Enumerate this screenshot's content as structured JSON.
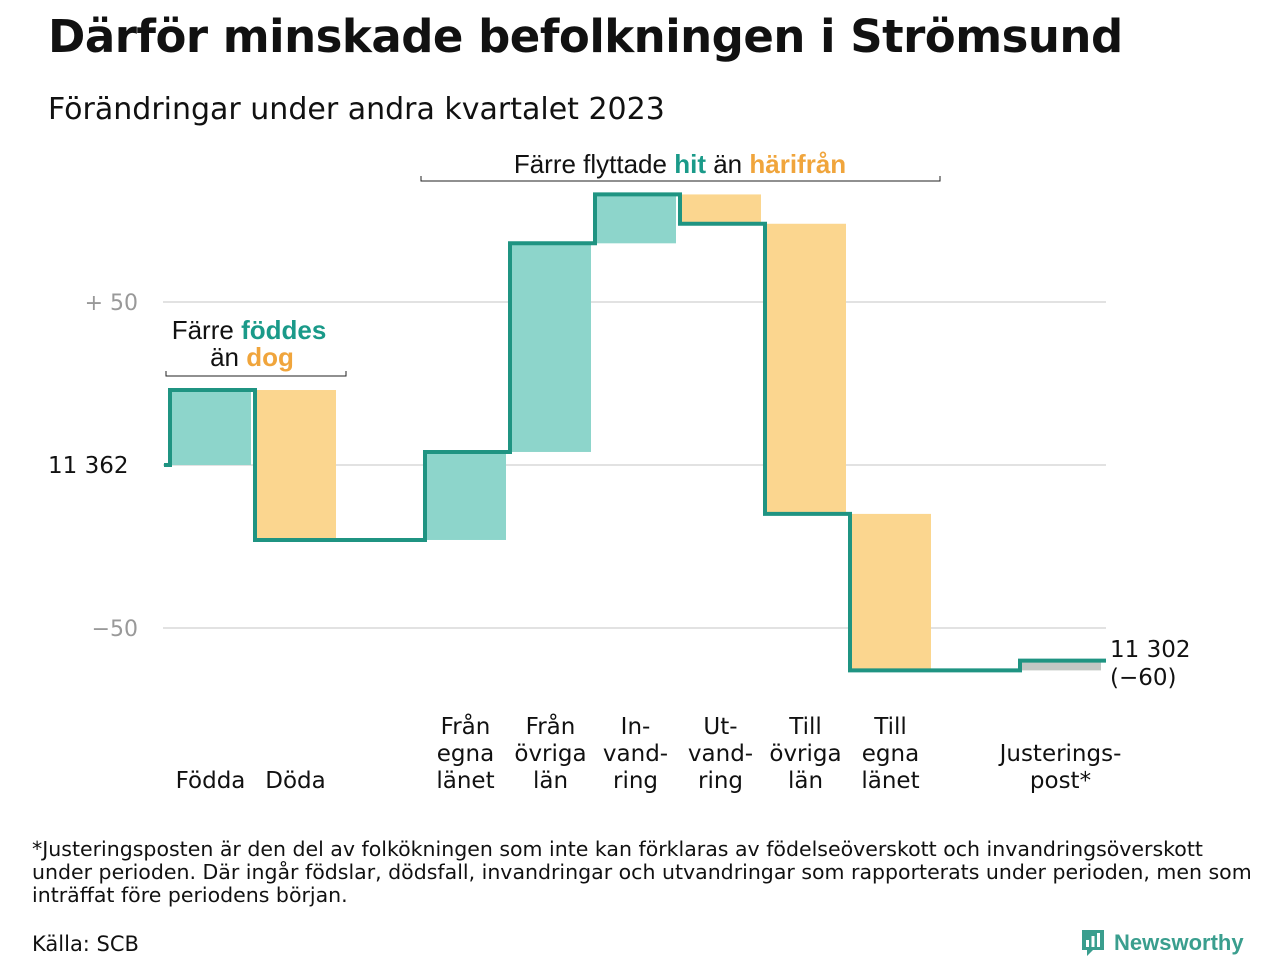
{
  "title": "Därför minskade befolkningen i Strömsund",
  "subtitle": "Förändringar under andra kvartalet 2023",
  "annotations": {
    "migration": {
      "text_before": "Färre flyttade",
      "hit": "hit",
      "middle": "än",
      "harifran": "härifrån"
    },
    "natural": {
      "text_before": "Färre",
      "foddes": "föddes",
      "middle": "än",
      "dog": "dog"
    }
  },
  "colors": {
    "increase": "#8dd5cb",
    "decrease": "#fbd68f",
    "line": "#1f9482",
    "adjustment": "#c2c7c4",
    "grid": "#e2e2e2"
  },
  "chart_data": {
    "type": "waterfall",
    "start_value": 11362,
    "start_label": "11  362",
    "end_value": 11302,
    "end_label": "11 302",
    "end_change_label": "(−60)",
    "y_ticks": [
      {
        "value": 50,
        "label": "+  50"
      },
      {
        "value": -50,
        "label": "−50"
      }
    ],
    "grid": true,
    "steps": [
      {
        "label": [
          "Födda"
        ],
        "change": 23,
        "slot": 0
      },
      {
        "label": [
          "Döda"
        ],
        "change": -46,
        "slot": 1
      },
      {
        "label": [
          "Från",
          "egna",
          "länet"
        ],
        "change": 27,
        "slot": 3
      },
      {
        "label": [
          "Från",
          "övriga",
          "län"
        ],
        "change": 64,
        "slot": 4
      },
      {
        "label": [
          "In-",
          "vand-",
          "ring"
        ],
        "change": 15,
        "slot": 5
      },
      {
        "label": [
          "Ut-",
          "vand-",
          "ring"
        ],
        "change": -9,
        "slot": 6
      },
      {
        "label": [
          "Till",
          "övriga",
          "län"
        ],
        "change": -89,
        "slot": 7
      },
      {
        "label": [
          "Till",
          "egna",
          "länet"
        ],
        "change": -48,
        "slot": 8
      },
      {
        "label": [
          "Justerings-",
          "post*"
        ],
        "change": 3,
        "slot": 10
      }
    ]
  },
  "footnote": "*Justeringsposten är den del av folkökningen som inte kan förklaras av födelseöverskott och invandringsöverskott under perioden. Där ingår födslar, dödsfall, invandringar och utvandringar som rapporterats under perioden, men som inträffat före periodens början.",
  "source": "Källa: SCB",
  "brand": {
    "name": "Newsworthy",
    "icon": "bar-chart-logo-icon"
  }
}
